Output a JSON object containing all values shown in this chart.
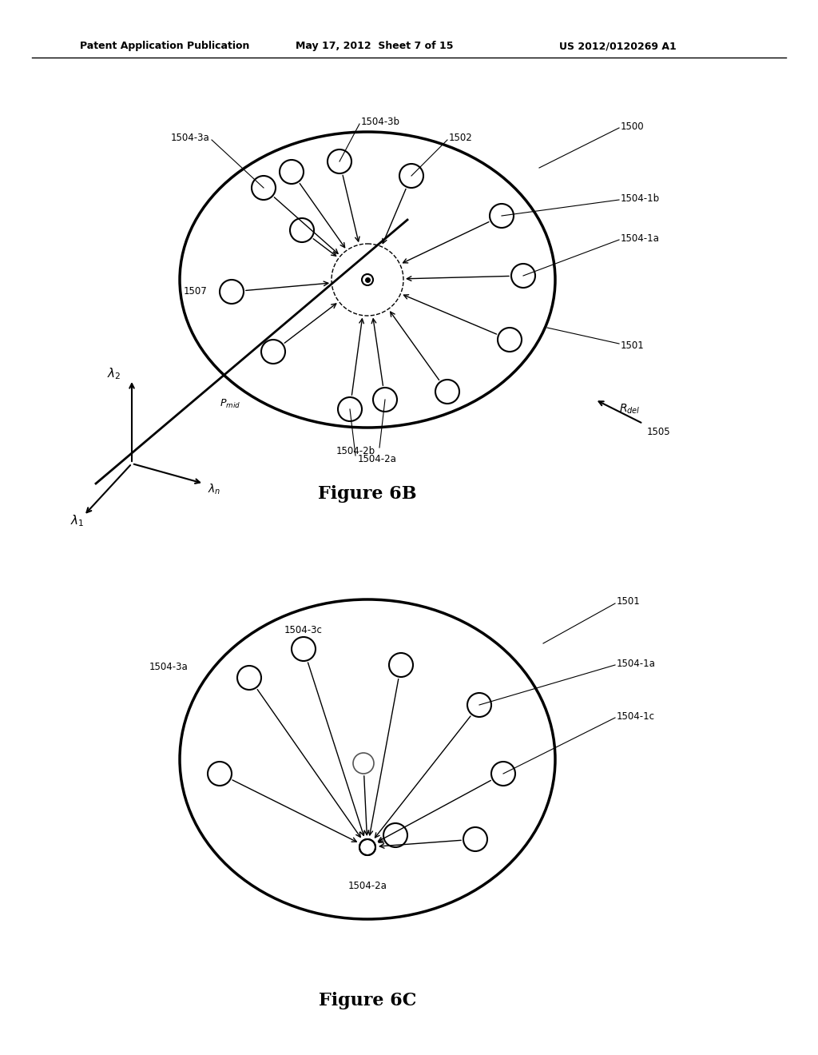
{
  "header_left": "Patent Application Publication",
  "header_mid": "May 17, 2012  Sheet 7 of 15",
  "header_right": "US 2012/0120269 A1",
  "fig6b_title": "Figure 6B",
  "fig6c_title": "Figure 6C",
  "bg_color": "#ffffff",
  "line_color": "#000000"
}
